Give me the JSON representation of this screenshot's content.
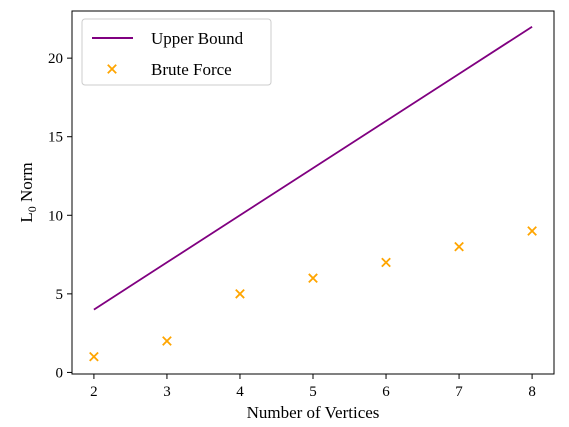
{
  "chart_data": {
    "type": "line+scatter",
    "xlabel": "Number of Vertices",
    "ylabel": "L",
    "ylabel_subscript": "0",
    "ylabel_suffix": " Norm",
    "xlim": [
      1.7,
      8.3
    ],
    "ylim": [
      -0.1,
      23.0
    ],
    "xticks": [
      2,
      3,
      4,
      5,
      6,
      7,
      8
    ],
    "yticks": [
      0,
      5,
      10,
      15,
      20
    ],
    "legend_position": "top-left",
    "series": [
      {
        "name": "Upper Bound",
        "kind": "line",
        "color": "#800080",
        "x": [
          2,
          3,
          4,
          5,
          6,
          7,
          8
        ],
        "y": [
          4,
          7,
          10,
          13,
          16,
          19,
          22
        ]
      },
      {
        "name": "Brute Force",
        "kind": "scatter",
        "marker": "x",
        "color": "#FFA500",
        "x": [
          2,
          3,
          4,
          5,
          6,
          7,
          8
        ],
        "y": [
          1,
          2,
          5,
          6,
          7,
          8,
          9
        ]
      }
    ]
  }
}
